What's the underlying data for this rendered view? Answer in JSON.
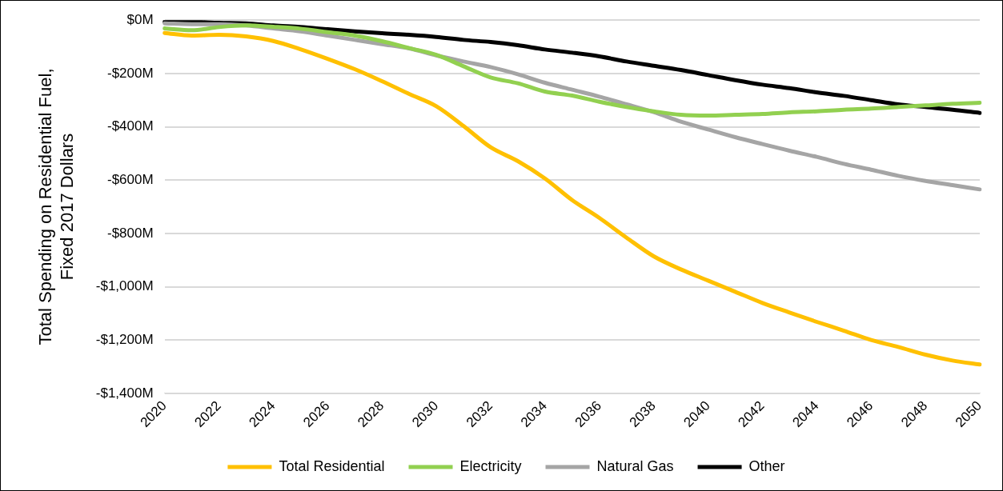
{
  "chart_data": {
    "type": "line",
    "ylabel": "Total Spending on Residential Fuel,\nFixed 2017 Dollars",
    "categories": [
      "2020",
      null,
      "2022",
      null,
      "2024",
      null,
      "2026",
      null,
      "2028",
      null,
      "2030",
      null,
      "2032",
      null,
      "2034",
      null,
      "2036",
      null,
      "2038",
      null,
      "2040",
      null,
      "2042",
      null,
      "2044",
      null,
      "2046",
      null,
      "2048",
      null,
      "2050"
    ],
    "series": [
      {
        "name": "Total Residential",
        "color": "#ffc000",
        "values": [
          -48,
          -58,
          -55,
          -61,
          -78,
          -109,
          -145,
          -184,
          -229,
          -277,
          -323,
          -397,
          -477,
          -529,
          -594,
          -675,
          -742,
          -816,
          -886,
          -935,
          -977,
          -1019,
          -1061,
          -1097,
          -1132,
          -1165,
          -1200,
          -1226,
          -1255,
          -1277,
          -1292
        ]
      },
      {
        "name": "Electricity",
        "color": "#92d050",
        "values": [
          -31,
          -38,
          -26,
          -20,
          -25,
          -32,
          -45,
          -58,
          -79,
          -105,
          -130,
          -173,
          -215,
          -237,
          -268,
          -283,
          -306,
          -326,
          -342,
          -355,
          -358,
          -355,
          -352,
          -346,
          -342,
          -336,
          -332,
          -326,
          -320,
          -314,
          -310
        ]
      },
      {
        "name": "Natural Gas",
        "color": "#a5a5a5",
        "values": [
          -12,
          -15,
          -15,
          -20,
          -31,
          -42,
          -58,
          -74,
          -90,
          -106,
          -132,
          -155,
          -176,
          -203,
          -235,
          -261,
          -287,
          -316,
          -345,
          -381,
          -410,
          -439,
          -465,
          -490,
          -513,
          -539,
          -561,
          -584,
          -603,
          -619,
          -635
        ]
      },
      {
        "name": "Other",
        "color": "#000000",
        "values": [
          -6,
          -6,
          -10,
          -12,
          -20,
          -26,
          -34,
          -42,
          -49,
          -55,
          -63,
          -74,
          -82,
          -94,
          -110,
          -122,
          -136,
          -155,
          -171,
          -187,
          -206,
          -225,
          -242,
          -255,
          -271,
          -284,
          -300,
          -316,
          -326,
          -336,
          -348
        ]
      }
    ],
    "ylim": [
      -1400,
      0
    ],
    "yticks": [
      {
        "value": -1400,
        "label": "-$1,400M"
      },
      {
        "value": -1200,
        "label": "-$1,200M"
      },
      {
        "value": -1000,
        "label": "-$1,000M"
      },
      {
        "value": -800,
        "label": "-$800M"
      },
      {
        "value": -600,
        "label": "-$600M"
      },
      {
        "value": -400,
        "label": "-$400M"
      },
      {
        "value": -200,
        "label": "-$200M"
      },
      {
        "value": 0,
        "label": "$0M"
      }
    ],
    "grid": "y",
    "legend": "bottom",
    "marker": "none",
    "line_style": "solid"
  }
}
